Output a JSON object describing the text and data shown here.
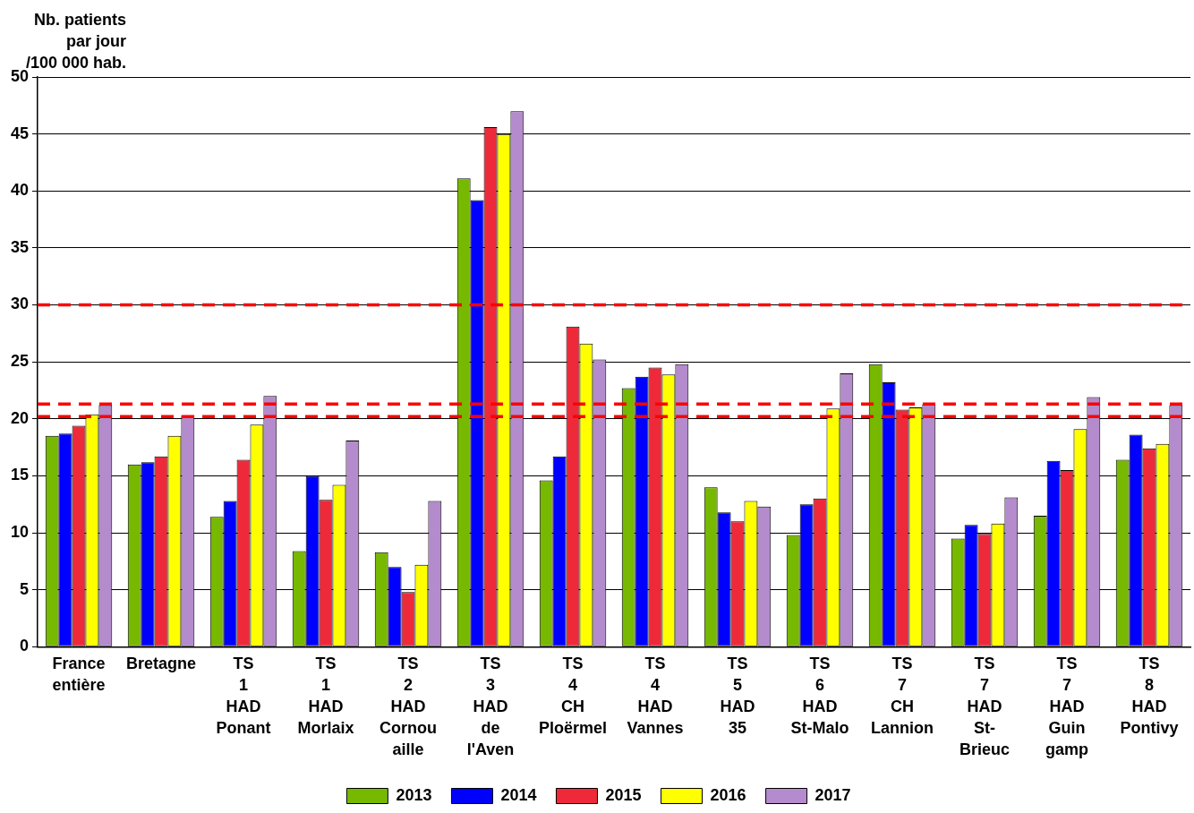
{
  "chart_data": {
    "type": "bar",
    "ylabel": "Nb. patients\npar jour\n/100 000 hab.",
    "categories": [
      "France\nentière",
      "Bretagne",
      "TS\n1\nHAD\nPonant",
      "TS\n1\nHAD\nMorlaix",
      "TS\n2\nHAD\nCornou\naille",
      "TS\n3\nHAD\nde\nl'Aven",
      "TS\n4\nCH\nPloërmel",
      "TS\n4\nHAD\nVannes",
      "TS\n5\nHAD\n35",
      "TS\n6\nHAD\nSt-Malo",
      "TS\n7\nCH\nLannion",
      "TS\n7\nHAD\nSt-\nBrieuc",
      "TS\n7\nHAD\nGuin\ngamp",
      "TS\n8\nHAD\nPontivy"
    ],
    "series": [
      {
        "name": "2013",
        "color": "#77b800",
        "values": [
          18.5,
          16.0,
          11.4,
          8.4,
          8.3,
          41.1,
          14.6,
          22.7,
          14.0,
          9.8,
          24.8,
          9.5,
          11.5,
          16.4
        ]
      },
      {
        "name": "2014",
        "color": "#0000ff",
        "values": [
          18.7,
          16.2,
          12.8,
          15.0,
          7.0,
          39.2,
          16.7,
          23.7,
          11.8,
          12.5,
          23.2,
          10.7,
          16.3,
          18.6
        ]
      },
      {
        "name": "2015",
        "color": "#ee2a3a",
        "values": [
          19.4,
          16.7,
          16.4,
          12.9,
          4.8,
          45.6,
          28.1,
          24.5,
          11.0,
          13.0,
          20.8,
          9.9,
          15.5,
          17.4
        ]
      },
      {
        "name": "2016",
        "color": "#ffff00",
        "values": [
          20.4,
          18.5,
          19.5,
          14.2,
          7.2,
          45.0,
          26.6,
          23.9,
          12.8,
          20.9,
          21.0,
          10.8,
          19.1,
          17.8
        ]
      },
      {
        "name": "2017",
        "color": "#b48bcc",
        "values": [
          21.2,
          20.3,
          22.0,
          18.1,
          12.8,
          47.0,
          25.2,
          24.8,
          12.3,
          24.0,
          21.3,
          13.1,
          21.9,
          21.2
        ]
      }
    ],
    "ylim": [
      0,
      50
    ],
    "yticks": [
      0,
      5,
      10,
      15,
      20,
      25,
      30,
      35,
      40,
      45,
      50
    ],
    "grid": "y",
    "legend": "bottom",
    "ref_lines": [
      {
        "axis": "y",
        "value": 30,
        "color": "#ff0000",
        "line_style": "dashed"
      },
      {
        "axis": "y",
        "value": 21.3,
        "color": "#ff0000",
        "line_style": "dashed"
      },
      {
        "axis": "y",
        "value": 20.2,
        "color": "#ff0000",
        "line_style": "dashed"
      }
    ]
  }
}
